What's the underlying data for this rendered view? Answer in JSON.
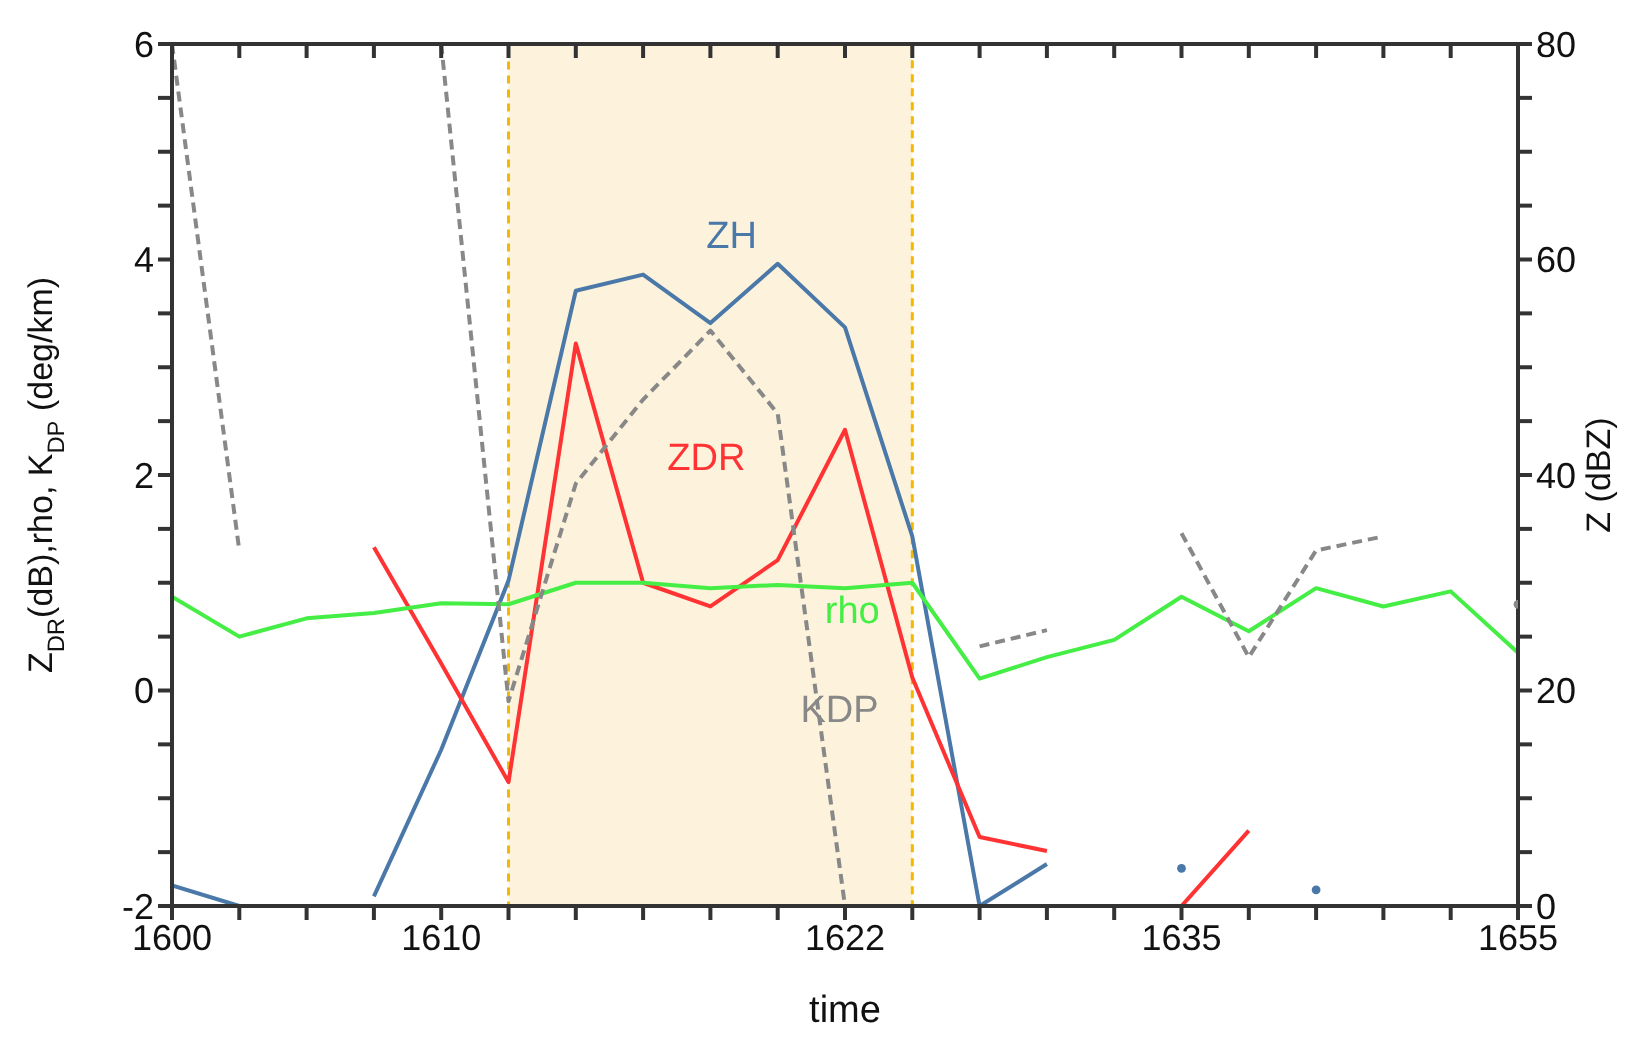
{
  "chart_data": {
    "type": "line",
    "xlabel": "time",
    "ylabel": "Z$_{DR}$(dB),rho, K$_{DP}$ (deg/km)",
    "y2label": "Z (dBZ)",
    "categories": [
      "1600",
      null,
      null,
      null,
      "1610",
      null,
      null,
      null,
      null,
      null,
      "1622",
      null,
      null,
      null,
      null,
      "1635",
      null,
      null,
      null,
      null,
      "1655"
    ],
    "series": [
      {
        "name": "ZH",
        "color": "#4a78a8",
        "axis": "y2",
        "line_style": "solid",
        "values": [
          1.9,
          0,
          null,
          0.9,
          14.5,
          30.2,
          57.1,
          58.6,
          54.1,
          59.6,
          53.7,
          34.3,
          0,
          3.9,
          null,
          3.5,
          null,
          1.5,
          null,
          null,
          null
        ]
      },
      {
        "name": "ZDR",
        "color": "#ff3333",
        "axis": "y",
        "line_style": "solid",
        "values": [
          null,
          null,
          null,
          1.33,
          0.25,
          -0.85,
          3.22,
          1.0,
          0.78,
          1.21,
          2.42,
          0.12,
          -1.36,
          -1.49,
          null,
          -2.0,
          -1.3,
          null,
          null,
          null,
          null
        ]
      },
      {
        "name": "rho",
        "color": "#44ee44",
        "axis": "y",
        "line_style": "solid",
        "values": [
          0.87,
          0.5,
          0.67,
          0.72,
          0.81,
          0.8,
          1.0,
          1.0,
          0.95,
          0.98,
          0.95,
          1.0,
          0.11,
          0.31,
          0.47,
          0.87,
          0.55,
          0.95,
          0.78,
          0.92,
          0.35
        ]
      },
      {
        "name": "KDP",
        "color": "#888888",
        "axis": "y",
        "line_style": "dashed",
        "values": [
          6,
          1.3,
          null,
          null,
          6,
          -0.1,
          1.92,
          2.7,
          3.34,
          2.57,
          -2,
          null,
          0.41,
          0.56,
          null,
          1.46,
          0.31,
          1.3,
          1.43,
          null,
          0.8
        ]
      }
    ],
    "ylim": [
      -2,
      6
    ],
    "yticks": [
      -2,
      {
        "value": -1.5,
        "label": null
      },
      {
        "value": -1,
        "label": null
      },
      {
        "value": -0.5,
        "label": null
      },
      0,
      {
        "value": 0.5,
        "label": null
      },
      {
        "value": 1,
        "label": null
      },
      {
        "value": 1.5,
        "label": null
      },
      2,
      {
        "value": 2.5,
        "label": null
      },
      {
        "value": 3,
        "label": null
      },
      {
        "value": 3.5,
        "label": null
      },
      4,
      {
        "value": 4.5,
        "label": null
      },
      {
        "value": 5,
        "label": null
      },
      {
        "value": 5.5,
        "label": null
      },
      6
    ],
    "y2lim": [
      0,
      80
    ],
    "y2ticks": [
      0,
      {
        "value": 5,
        "label": null
      },
      {
        "value": 10,
        "label": null
      },
      {
        "value": 15,
        "label": null
      },
      20,
      {
        "value": 25,
        "label": null
      },
      {
        "value": 30,
        "label": null
      },
      {
        "value": 35,
        "label": null
      },
      40,
      {
        "value": 45,
        "label": null
      },
      {
        "value": 50,
        "label": null
      },
      {
        "value": 55,
        "label": null
      },
      60,
      {
        "value": 65,
        "label": null
      },
      {
        "value": 70,
        "label": null
      },
      {
        "value": 75,
        "label": null
      },
      80
    ],
    "grid": false,
    "legend": false,
    "marker": "none"
  }
}
